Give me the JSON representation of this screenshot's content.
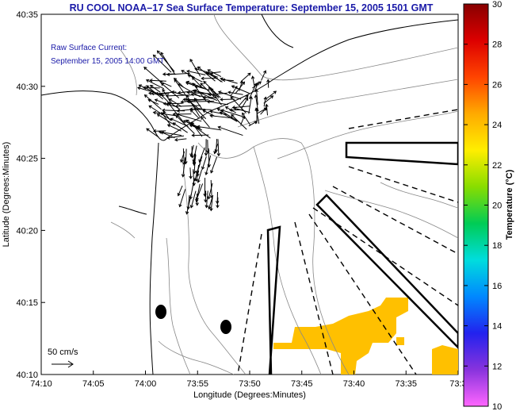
{
  "title": "RU COOL  NOAA–17  Sea Surface Temperature:  September 15, 2005 1501 GMT",
  "current_label": {
    "line1": "Raw Surface Current:",
    "line2": "September 15, 2005 14:00 GMT"
  },
  "scale_label": "50 cm/s",
  "axes": {
    "xlabel": "Longitude (Degrees:Minutes)",
    "ylabel": "Latitude (Degrees:Minutes)",
    "x_ticks": [
      "74:10",
      "74:05",
      "74:00",
      "73:55",
      "73:50",
      "73:45",
      "73:40",
      "73:35",
      "73:3"
    ],
    "y_ticks": [
      "40:35",
      "40:30",
      "40:25",
      "40:20",
      "40:15",
      "40:10"
    ]
  },
  "colorbar": {
    "title": "Temperature (°C)",
    "min": 10,
    "max": 30,
    "ticks": [
      "30",
      "28",
      "26",
      "24",
      "22",
      "20",
      "18",
      "16",
      "14",
      "12",
      "10"
    ],
    "colors": [
      "#ff66ff",
      "#8833dd",
      "#2222ee",
      "#0088ff",
      "#00dddd",
      "#00cc55",
      "#88dd00",
      "#ffee00",
      "#ffaa00",
      "#ff4400",
      "#dd0000",
      "#880000"
    ]
  },
  "colors": {
    "title": "#1a1aa8",
    "sst_patch": "#ffc000",
    "land_contour": "#000000",
    "bathymetry": "#888888",
    "vectors": "#000000"
  }
}
